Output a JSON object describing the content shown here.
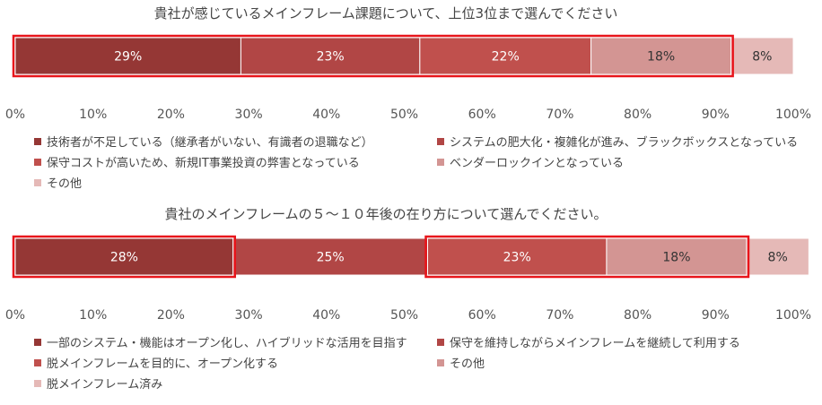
{
  "chart_data": [
    {
      "type": "bar",
      "orientation": "horizontal-stacked",
      "title": "貴社が感じているメインフレーム課題について、上位3位まで選んでください",
      "xlim": [
        0,
        100
      ],
      "x_ticks": [
        "0%",
        "10%",
        "20%",
        "30%",
        "40%",
        "50%",
        "60%",
        "70%",
        "80%",
        "90%",
        "100%"
      ],
      "series": [
        {
          "name": "技術者が不足している（継承者がいない、有識者の退職など）",
          "value": 29,
          "label": "29%",
          "color": "#953735"
        },
        {
          "name": "システムの肥大化・複雑化が進み、ブラックボックスとなっている",
          "value": 23,
          "label": "23%",
          "color": "#b14645"
        },
        {
          "name": "保守コストが高いため、新規IT事業投資の弊害となっている",
          "value": 22,
          "label": "22%",
          "color": "#c0504d"
        },
        {
          "name": "ベンダーロックインとなっている",
          "value": 18,
          "label": "18%",
          "color": "#d39593"
        },
        {
          "name": "その他",
          "value": 8,
          "label": "8%",
          "color": "#e5b9b7"
        }
      ],
      "highlight_series": [
        [
          0,
          3
        ]
      ],
      "highlight_color": "#e8151b",
      "legend_position": "bottom",
      "grid": false
    },
    {
      "type": "bar",
      "orientation": "horizontal-stacked",
      "title": "貴社のメインフレームの５～１０年後の在り方について選んでください。",
      "xlim": [
        0,
        100
      ],
      "x_ticks": [
        "0%",
        "10%",
        "20%",
        "30%",
        "40%",
        "50%",
        "60%",
        "70%",
        "80%",
        "90%",
        "100%"
      ],
      "series": [
        {
          "name": "一部のシステム・機能はオープン化し、ハイブリッドな活用を目指す",
          "value": 28,
          "label": "28%",
          "color": "#953735"
        },
        {
          "name": "保守を維持しながらメインフレームを継続して利用する",
          "value": 25,
          "label": "25%",
          "color": "#b14645"
        },
        {
          "name": "脱メインフレームを目的に、オープン化する",
          "value": 23,
          "label": "23%",
          "color": "#c0504d"
        },
        {
          "name": "その他",
          "value": 18,
          "label": "18%",
          "color": "#d39593"
        },
        {
          "name": "脱メインフレーム済み",
          "value": 8,
          "label": "8%",
          "color": "#e5b9b7"
        }
      ],
      "highlight_series": [
        [
          0,
          0
        ],
        [
          2,
          3
        ]
      ],
      "highlight_color": "#e8151b",
      "legend_position": "bottom",
      "grid": false
    }
  ]
}
